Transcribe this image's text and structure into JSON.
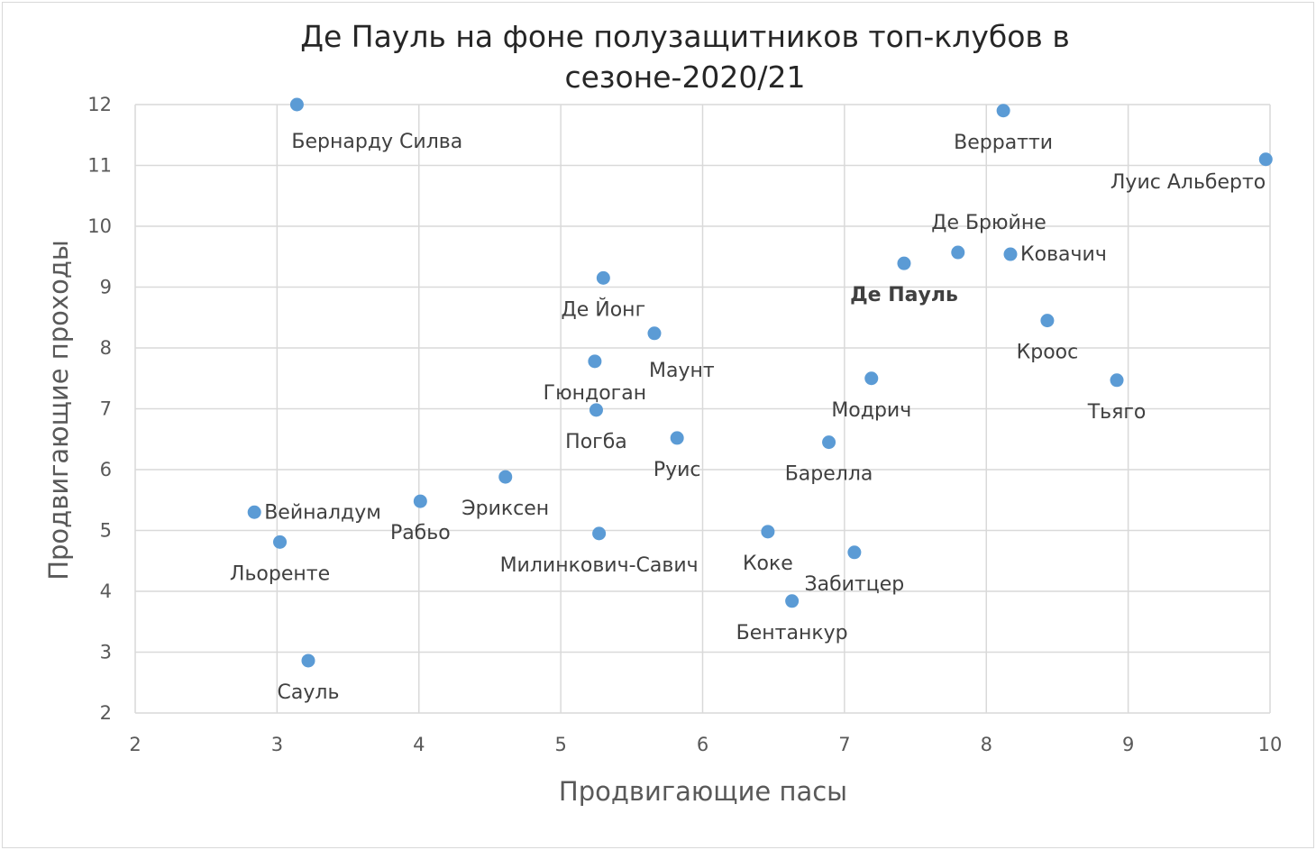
{
  "chart_data": {
    "type": "scatter",
    "title_lines": [
      "Де Пауль на фоне полузащитников топ-клубов в",
      "сезоне-2020/21"
    ],
    "xlabel": "Продвигающие пасы",
    "ylabel": "Продвигающие проходы",
    "xlim": [
      2,
      10
    ],
    "ylim": [
      2,
      12
    ],
    "x_ticks": [
      2,
      3,
      4,
      5,
      6,
      7,
      8,
      9,
      10
    ],
    "y_ticks": [
      2,
      3,
      4,
      5,
      6,
      7,
      8,
      9,
      10,
      11,
      12
    ],
    "grid": true,
    "legend": "none",
    "point_color": "#5b9bd5",
    "points": [
      {
        "label": "Бернарду Силва",
        "x": 3.14,
        "y": 12.0,
        "pos": "below-right"
      },
      {
        "label": "Верратти",
        "x": 8.12,
        "y": 11.9,
        "pos": "below"
      },
      {
        "label": "Луис Альберто",
        "x": 9.97,
        "y": 11.1,
        "pos": "below-left"
      },
      {
        "label": "Де Брюйне",
        "x": 7.8,
        "y": 9.57,
        "pos": "above"
      },
      {
        "label": "Ковачич",
        "x": 8.17,
        "y": 9.54,
        "pos": "right"
      },
      {
        "label": "Де Пауль",
        "x": 7.42,
        "y": 9.39,
        "pos": "below",
        "bold": true
      },
      {
        "label": "Де Йонг",
        "x": 5.3,
        "y": 9.15,
        "pos": "below"
      },
      {
        "label": "Маунт",
        "x": 5.66,
        "y": 8.24,
        "pos": "below-right"
      },
      {
        "label": "Кроос",
        "x": 8.43,
        "y": 8.45,
        "pos": "below"
      },
      {
        "label": "Гюндоган",
        "x": 5.24,
        "y": 7.78,
        "pos": "below"
      },
      {
        "label": "Модрич",
        "x": 7.19,
        "y": 7.5,
        "pos": "below"
      },
      {
        "label": "Тьяго",
        "x": 8.92,
        "y": 7.47,
        "pos": "below"
      },
      {
        "label": "Погба",
        "x": 5.25,
        "y": 6.98,
        "pos": "below"
      },
      {
        "label": "Руис",
        "x": 5.82,
        "y": 6.52,
        "pos": "below"
      },
      {
        "label": "Барелла",
        "x": 6.89,
        "y": 6.45,
        "pos": "below"
      },
      {
        "label": "Эриксен",
        "x": 4.61,
        "y": 5.88,
        "pos": "below"
      },
      {
        "label": "Вейналдум",
        "x": 2.84,
        "y": 5.3,
        "pos": "right"
      },
      {
        "label": "Рабьо",
        "x": 4.01,
        "y": 5.48,
        "pos": "below"
      },
      {
        "label": "Льоренте",
        "x": 3.02,
        "y": 4.81,
        "pos": "below"
      },
      {
        "label": "Милинкович-Савич",
        "x": 5.27,
        "y": 4.95,
        "pos": "below"
      },
      {
        "label": "Коке",
        "x": 6.46,
        "y": 4.98,
        "pos": "below"
      },
      {
        "label": "Забитцер",
        "x": 7.07,
        "y": 4.64,
        "pos": "below"
      },
      {
        "label": "Бентанкур",
        "x": 6.63,
        "y": 3.84,
        "pos": "below"
      },
      {
        "label": "Сауль",
        "x": 3.22,
        "y": 2.86,
        "pos": "below"
      }
    ]
  }
}
